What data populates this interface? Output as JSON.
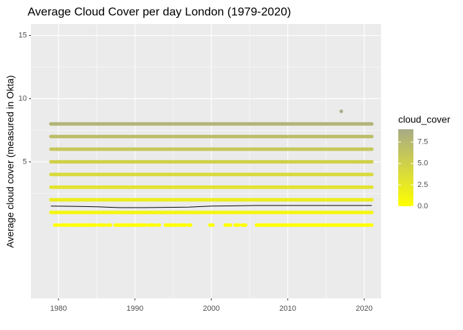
{
  "chart_data": {
    "type": "scatter",
    "title": "Average Cloud Cover per day London (1979-2020)",
    "y_label": "Average cloud cover (measured in Okta)",
    "xlim": [
      1976.4,
      2022.2
    ],
    "ylim": [
      -5.8,
      15.9
    ],
    "xticks": [
      1980,
      1990,
      2000,
      2010,
      2020
    ],
    "yticks": [
      5,
      10,
      15
    ],
    "grid": true,
    "segments": [
      {
        "y": 8,
        "xstart": 1979,
        "xend": 2021
      },
      {
        "y": 7,
        "xstart": 1979,
        "xend": 2021
      },
      {
        "y": 6,
        "xstart": 1979,
        "xend": 2021
      },
      {
        "y": 5,
        "xstart": 1979,
        "xend": 2021
      },
      {
        "y": 4,
        "xstart": 1979,
        "xend": 2021
      },
      {
        "y": 3,
        "xstart": 1979,
        "xend": 2021
      },
      {
        "y": 2,
        "xstart": 1979,
        "xend": 2021
      },
      {
        "y": 1,
        "xstart": 1979,
        "xend": 2021
      },
      {
        "y": 0,
        "xstart": 1979.5,
        "xend": 1979.9
      },
      {
        "y": 0,
        "xstart": 1980.3,
        "xend": 1981.3
      },
      {
        "y": 0,
        "xstart": 1981.6,
        "xend": 1984.9
      },
      {
        "y": 0,
        "xstart": 1985.3,
        "xend": 1986.0
      },
      {
        "y": 0,
        "xstart": 1986.4,
        "xend": 1986.8
      },
      {
        "y": 0,
        "xstart": 1987.4,
        "xend": 1991.4
      },
      {
        "y": 0,
        "xstart": 1991.8,
        "xend": 1992.5
      },
      {
        "y": 0,
        "xstart": 1992.9,
        "xend": 1993.2
      },
      {
        "y": 0,
        "xstart": 1994.0,
        "xend": 1995.4
      },
      {
        "y": 0,
        "xstart": 1995.7,
        "xend": 1996.6
      },
      {
        "y": 0,
        "xstart": 1997.0,
        "xend": 1997.3
      },
      {
        "y": 0,
        "xstart": 1999.8,
        "xend": 2000.2
      },
      {
        "y": 0,
        "xstart": 2001.8,
        "xend": 2002.5
      },
      {
        "y": 0,
        "xstart": 2003.1,
        "xend": 2003.6
      },
      {
        "y": 0,
        "xstart": 2004.0,
        "xend": 2004.5
      },
      {
        "y": 0,
        "xstart": 2005.9,
        "xend": 2021.0
      }
    ],
    "points": [
      {
        "x": 2017,
        "y": 9
      }
    ],
    "trend": {
      "color": "#000000",
      "x": [
        1979,
        1982,
        1985,
        1988,
        1991,
        1994,
        1997,
        2000,
        2003,
        2006,
        2009,
        2012,
        2015,
        2018,
        2021
      ],
      "y": [
        1.5,
        1.48,
        1.45,
        1.38,
        1.38,
        1.4,
        1.42,
        1.5,
        1.52,
        1.55,
        1.55,
        1.55,
        1.55,
        1.55,
        1.55
      ]
    },
    "legend": {
      "title": "cloud_cover",
      "low": "#FFFF00",
      "high": "#A8AB86",
      "limits": [
        0,
        9
      ],
      "ticks": [
        {
          "value": 0,
          "label": "0.0"
        },
        {
          "value": 2.5,
          "label": "2.5"
        },
        {
          "value": 5,
          "label": "5.0"
        },
        {
          "value": 7.5,
          "label": "7.5"
        }
      ]
    }
  }
}
